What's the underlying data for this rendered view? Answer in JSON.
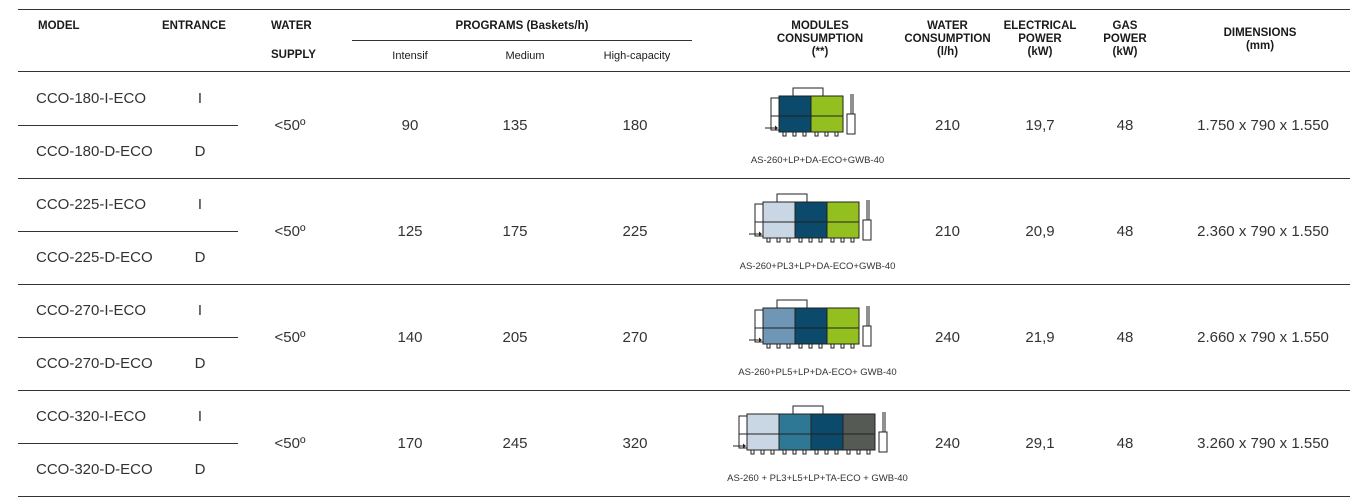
{
  "header": {
    "model": "MODEL",
    "entrance": "ENTRANCE",
    "water_supply_1": "WATER",
    "water_supply_2": "SUPPLY",
    "programs": "PROGRAMS (Baskets/h)",
    "prog_intensif": "Intensif",
    "prog_medium": "Medium",
    "prog_high": "High-capacity",
    "modules_1": "MODULES",
    "modules_2": "CONSUMPTION",
    "modules_3": "(**)",
    "water_cons_1": "WATER",
    "water_cons_2": "CONSUMPTION",
    "water_cons_3": "(l/h)",
    "elec_1": "ELECTRICAL",
    "elec_2": "POWER",
    "elec_3": "(kW)",
    "gas_1": "GAS",
    "gas_2": "POWER",
    "gas_3": "(kW)",
    "dim_1": "DIMENSIONS",
    "dim_2": "(mm)"
  },
  "colors": {
    "light_blue": "#c9d6e3",
    "steel_blue": "#6f96b4",
    "teal_blue": "#2e7896",
    "dark_blue": "#0b4a6b",
    "green": "#93c01f",
    "dark_gray": "#555a55"
  },
  "rows": [
    {
      "model_i": "CCO-180-I-ECO",
      "entrance_i": "I",
      "model_d": "CCO-180-D-ECO",
      "entrance_d": "D",
      "water_supply": "<50º",
      "intensif": "90",
      "medium": "135",
      "high": "180",
      "modules_caption": "AS-260+LP+DA-ECO+GWB-40",
      "modules": [
        "dark_blue",
        "green"
      ],
      "water_cons": "210",
      "elec": "19,7",
      "gas": "48",
      "dimensions": "1.750 x 790 x 1.550"
    },
    {
      "model_i": "CCO-225-I-ECO",
      "entrance_i": "I",
      "model_d": "CCO-225-D-ECO",
      "entrance_d": "D",
      "water_supply": "<50º",
      "intensif": "125",
      "medium": "175",
      "high": "225",
      "modules_caption": "AS-260+PL3+LP+DA-ECO+GWB-40",
      "modules": [
        "light_blue",
        "dark_blue",
        "green"
      ],
      "water_cons": "210",
      "elec": "20,9",
      "gas": "48",
      "dimensions": "2.360 x 790 x 1.550"
    },
    {
      "model_i": "CCO-270-I-ECO",
      "entrance_i": "I",
      "model_d": "CCO-270-D-ECO",
      "entrance_d": "D",
      "water_supply": "<50º",
      "intensif": "140",
      "medium": "205",
      "high": "270",
      "modules_caption": "AS-260+PL5+LP+DA-ECO+ GWB-40",
      "modules": [
        "steel_blue",
        "dark_blue",
        "green"
      ],
      "water_cons": "240",
      "elec": "21,9",
      "gas": "48",
      "dimensions": "2.660 x 790 x 1.550"
    },
    {
      "model_i": "CCO-320-I-ECO",
      "entrance_i": "I",
      "model_d": "CCO-320-D-ECO",
      "entrance_d": "D",
      "water_supply": "<50º",
      "intensif": "170",
      "medium": "245",
      "high": "320",
      "modules_caption": "AS-260 + PL3+L5+LP+TA-ECO + GWB-40",
      "modules": [
        "light_blue",
        "teal_blue",
        "dark_blue",
        "dark_gray"
      ],
      "water_cons": "240",
      "elec": "29,1",
      "gas": "48",
      "dimensions": "3.260 x 790 x 1.550"
    }
  ]
}
